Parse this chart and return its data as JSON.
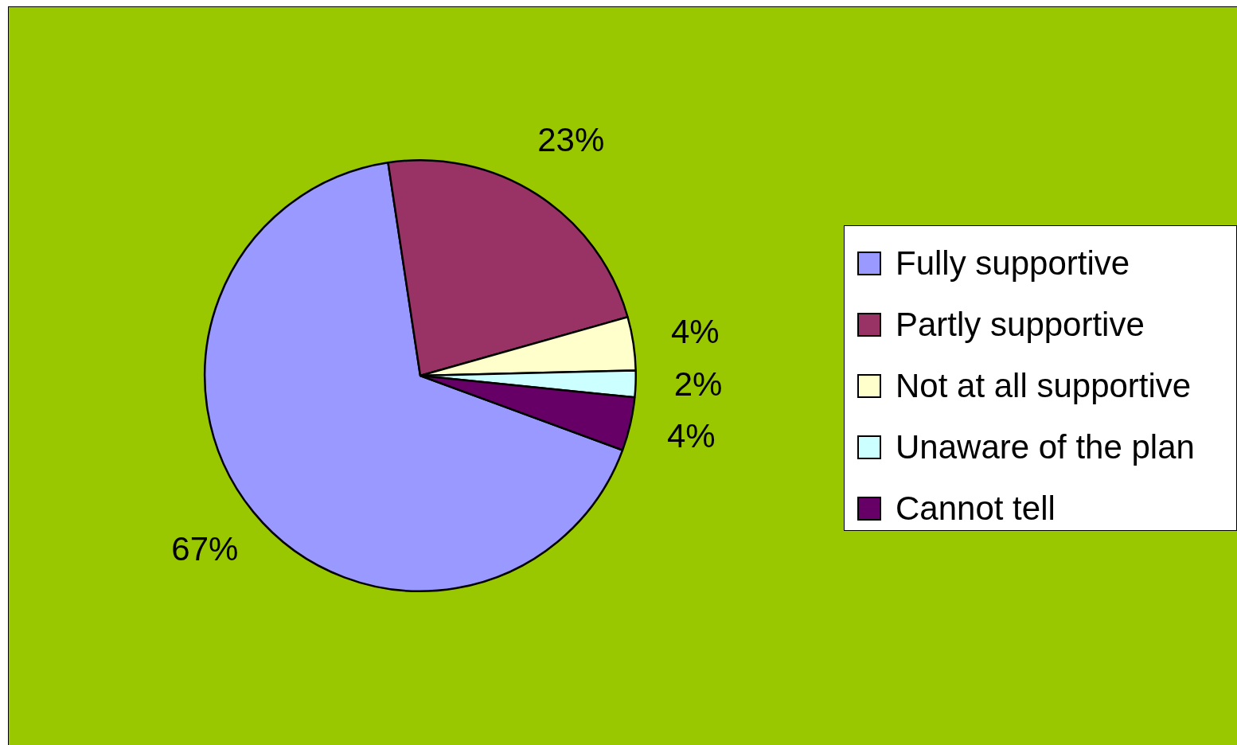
{
  "chart_data": {
    "type": "pie",
    "categories": [
      "Fully supportive",
      "Partly supportive",
      "Not at all supportive",
      "Unaware of the plan",
      "Cannot tell"
    ],
    "values": [
      67,
      23,
      4,
      2,
      4
    ],
    "colors": [
      "#9999ff",
      "#993366",
      "#ffffcc",
      "#ccffff",
      "#660066"
    ],
    "value_labels": [
      "67%",
      "23%",
      "4%",
      "2%",
      "4%"
    ],
    "legend": "right"
  }
}
